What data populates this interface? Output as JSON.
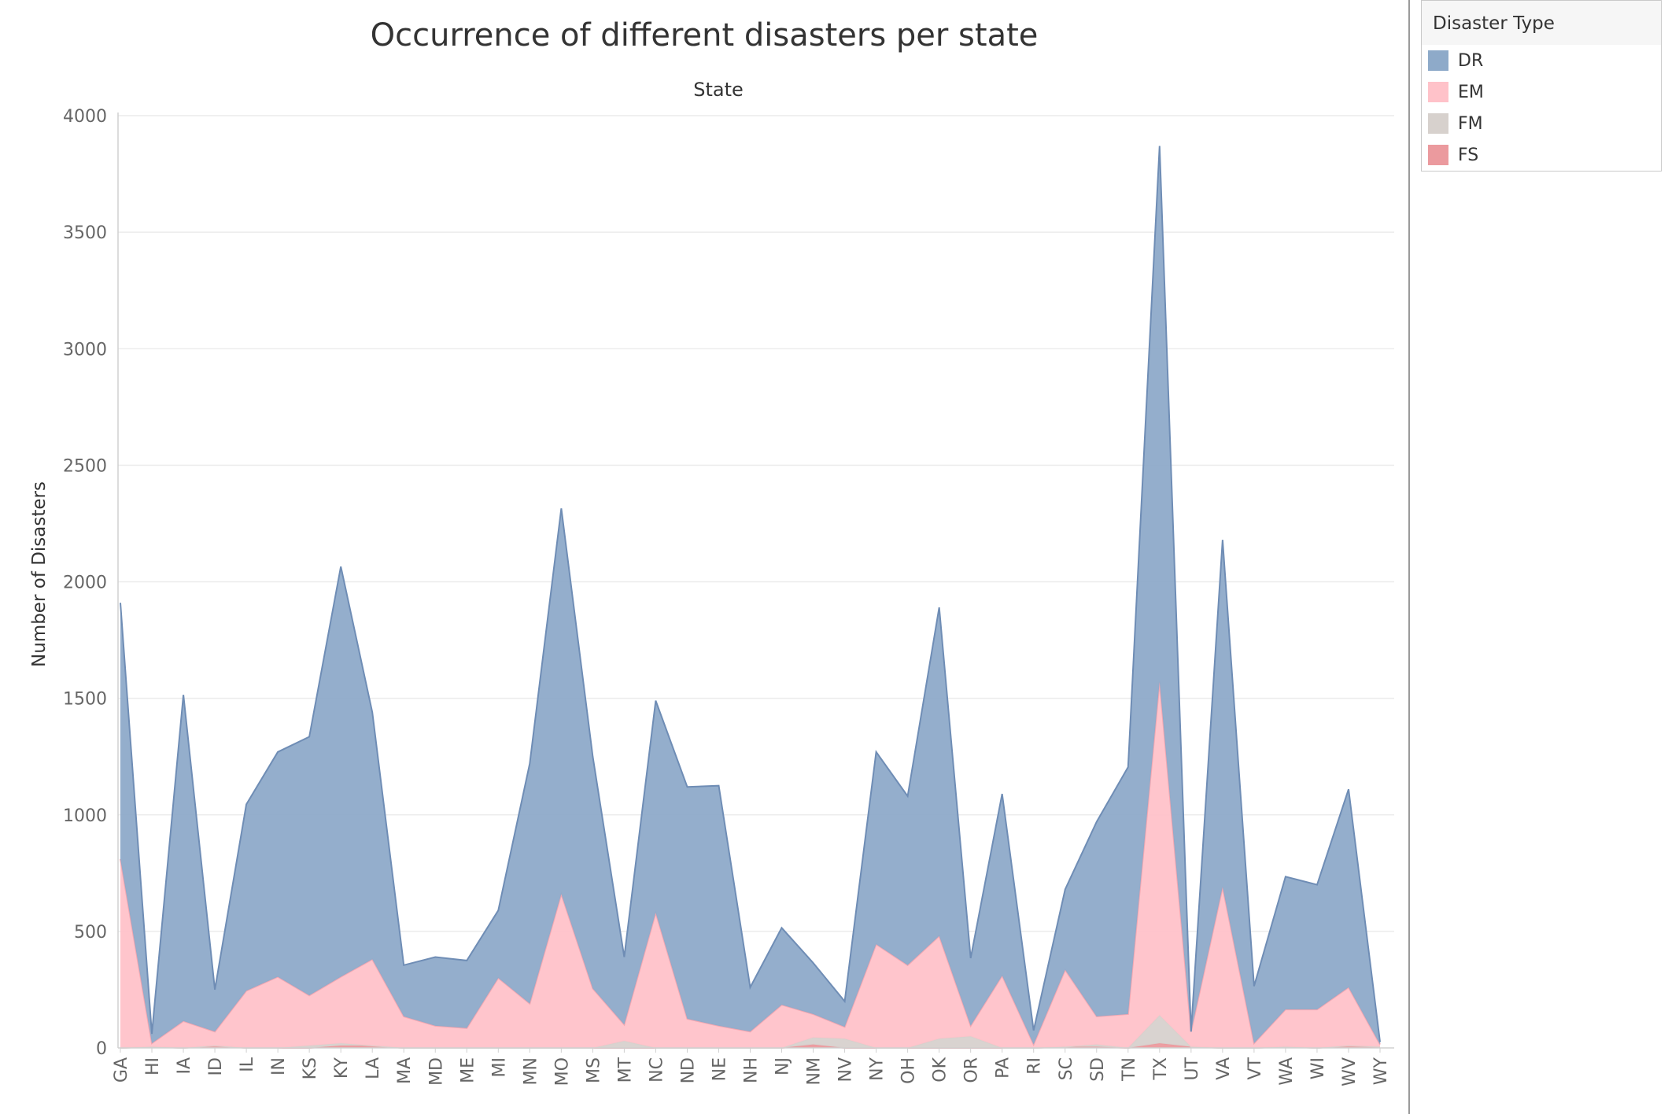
{
  "chart_data": {
    "type": "area",
    "title": "Occurrence of different disasters per state",
    "top_label": "State",
    "ylabel": "Number of Disasters",
    "ylim": [
      0,
      4000
    ],
    "y_ticks": [
      0,
      500,
      1000,
      1500,
      2000,
      2500,
      3000,
      3500,
      4000
    ],
    "grid": true,
    "stacked": true,
    "legend": {
      "title": "Disaster Type",
      "position": "right",
      "items": [
        {
          "label": "DR",
          "color": "#8eaac9"
        },
        {
          "label": "EM",
          "color": "#ffc2c9"
        },
        {
          "label": "FM",
          "color": "#d7d1cd"
        },
        {
          "label": "FS",
          "color": "#eb9a9e"
        }
      ]
    },
    "categories": [
      "GA",
      "HI",
      "IA",
      "ID",
      "IL",
      "IN",
      "KS",
      "KY",
      "LA",
      "MA",
      "MD",
      "ME",
      "MI",
      "MN",
      "MO",
      "MS",
      "MT",
      "NC",
      "ND",
      "NE",
      "NH",
      "NJ",
      "NM",
      "NV",
      "NY",
      "OH",
      "OK",
      "OR",
      "PA",
      "RI",
      "SC",
      "SD",
      "TN",
      "TX",
      "UT",
      "VA",
      "VT",
      "WA",
      "WI",
      "WV",
      "WY"
    ],
    "series": [
      {
        "name": "FS",
        "color": "#eb9a9e",
        "values": [
          0,
          5,
          0,
          10,
          0,
          0,
          0,
          10,
          10,
          0,
          0,
          0,
          0,
          0,
          0,
          0,
          0,
          0,
          0,
          0,
          0,
          0,
          15,
          0,
          0,
          0,
          0,
          0,
          0,
          0,
          5,
          5,
          0,
          20,
          5,
          0,
          0,
          5,
          0,
          10,
          5
        ]
      },
      {
        "name": "FM",
        "color": "#d7d1cd",
        "values": [
          0,
          0,
          0,
          0,
          0,
          0,
          10,
          10,
          0,
          0,
          0,
          0,
          0,
          0,
          0,
          0,
          30,
          0,
          0,
          0,
          0,
          0,
          30,
          40,
          0,
          0,
          40,
          50,
          0,
          0,
          0,
          10,
          0,
          120,
          0,
          0,
          0,
          0,
          0,
          0,
          0
        ]
      },
      {
        "name": "EM",
        "color": "#ffc2c9",
        "values": [
          810,
          15,
          115,
          60,
          245,
          305,
          215,
          285,
          370,
          135,
          95,
          85,
          300,
          190,
          660,
          255,
          70,
          580,
          125,
          95,
          70,
          185,
          100,
          50,
          445,
          355,
          440,
          45,
          310,
          15,
          330,
          120,
          145,
          1430,
          65,
          690,
          20,
          160,
          165,
          250,
          10
        ]
      },
      {
        "name": "DR",
        "color": "#8eaac9",
        "values": [
          1100,
          40,
          1400,
          180,
          800,
          965,
          1110,
          1760,
          1060,
          220,
          295,
          290,
          290,
          1030,
          1655,
          995,
          290,
          910,
          995,
          1030,
          190,
          330,
          220,
          110,
          825,
          725,
          1410,
          290,
          780,
          60,
          345,
          835,
          1060,
          2300,
          0,
          1490,
          245,
          570,
          535,
          850,
          10
        ]
      }
    ]
  }
}
